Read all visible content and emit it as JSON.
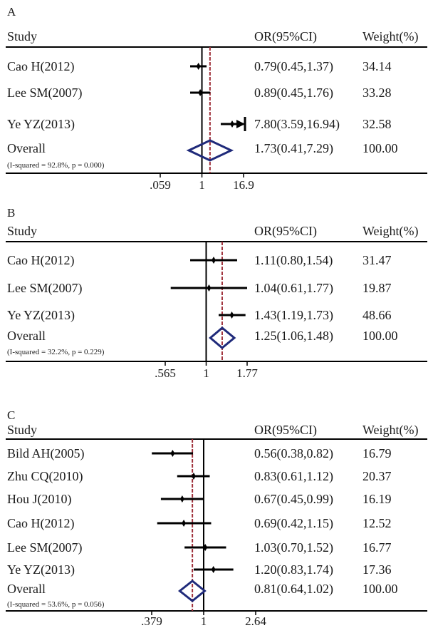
{
  "colors": {
    "text": "#1a1a1a",
    "study_line": "#000000",
    "diamond": "#1f2a7a",
    "overall_line": "#a0303a"
  },
  "chart_data": [
    {
      "type": "forest",
      "panel_label": "A",
      "header": {
        "study": "Study",
        "or": "OR(95%CI)",
        "weight": "Weight(%)"
      },
      "scale": "log",
      "xlim": [
        0.059,
        16.9
      ],
      "ticks": [
        {
          "value": 0.059,
          "label": ".059"
        },
        {
          "value": 1,
          "label": "1"
        },
        {
          "value": 16.9,
          "label": "16.9"
        }
      ],
      "studies": [
        {
          "name": "Cao H(2012)",
          "or": 0.79,
          "lo": 0.45,
          "hi": 1.37,
          "or_text": "0.79(0.45,1.37)",
          "weight": "34.14"
        },
        {
          "name": "Lee SM(2007)",
          "or": 0.89,
          "lo": 0.45,
          "hi": 1.76,
          "or_text": "0.89(0.45,1.76)",
          "weight": "33.28"
        },
        {
          "name": "Ye YZ(2013)",
          "or": 7.8,
          "lo": 3.59,
          "hi": 16.94,
          "or_text": "7.80(3.59,16.94)",
          "weight": "32.58",
          "arrow_right": true
        }
      ],
      "overall": {
        "name": "Overall",
        "heterogeneity": "(I-squared = 92.8%, p = 0.000)",
        "or": 1.73,
        "lo": 0.41,
        "hi": 7.29,
        "or_text": "1.73(0.41,7.29)",
        "weight": "100.00"
      }
    },
    {
      "type": "forest",
      "panel_label": "B",
      "header": {
        "study": "Study",
        "or": "OR(95%CI)",
        "weight": "Weight(%)"
      },
      "scale": "log",
      "xlim": [
        0.565,
        1.77
      ],
      "ticks": [
        {
          "value": 0.565,
          "label": ".565"
        },
        {
          "value": 1,
          "label": "1"
        },
        {
          "value": 1.77,
          "label": "1.77"
        }
      ],
      "studies": [
        {
          "name": "Cao H(2012)",
          "or": 1.11,
          "lo": 0.8,
          "hi": 1.54,
          "or_text": "1.11(0.80,1.54)",
          "weight": "31.47"
        },
        {
          "name": "Lee SM(2007)",
          "or": 1.04,
          "lo": 0.61,
          "hi": 1.77,
          "or_text": "1.04(0.61,1.77)",
          "weight": "19.87"
        },
        {
          "name": "Ye YZ(2013)",
          "or": 1.43,
          "lo": 1.19,
          "hi": 1.73,
          "or_text": "1.43(1.19,1.73)",
          "weight": "48.66"
        }
      ],
      "overall": {
        "name": "Overall",
        "heterogeneity": "(I-squared = 32.2%, p = 0.229)",
        "or": 1.25,
        "lo": 1.06,
        "hi": 1.48,
        "or_text": "1.25(1.06,1.48)",
        "weight": "100.00"
      }
    },
    {
      "type": "forest",
      "panel_label": "C",
      "header": {
        "study": "Study",
        "or": "OR(95%CI)",
        "weight": "Weight(%)"
      },
      "scale": "log",
      "xlim": [
        0.379,
        2.64
      ],
      "ticks": [
        {
          "value": 0.379,
          "label": ".379"
        },
        {
          "value": 1,
          "label": "1"
        },
        {
          "value": 2.64,
          "label": "2.64"
        }
      ],
      "studies": [
        {
          "name": "Bild AH(2005)",
          "or": 0.56,
          "lo": 0.38,
          "hi": 0.82,
          "or_text": "0.56(0.38,0.82)",
          "weight": "16.79"
        },
        {
          "name": "Zhu CQ(2010)",
          "or": 0.83,
          "lo": 0.61,
          "hi": 1.12,
          "or_text": "0.83(0.61,1.12)",
          "weight": "20.37"
        },
        {
          "name": "Hou J(2010)",
          "or": 0.67,
          "lo": 0.45,
          "hi": 0.99,
          "or_text": "0.67(0.45,0.99)",
          "weight": "16.19"
        },
        {
          "name": "Cao H(2012)",
          "or": 0.69,
          "lo": 0.42,
          "hi": 1.15,
          "or_text": "0.69(0.42,1.15)",
          "weight": "12.52"
        },
        {
          "name": "Lee SM(2007)",
          "or": 1.03,
          "lo": 0.7,
          "hi": 1.52,
          "or_text": "1.03(0.70,1.52)",
          "weight": "16.77"
        },
        {
          "name": "Ye YZ(2013)",
          "or": 1.2,
          "lo": 0.83,
          "hi": 1.74,
          "or_text": "1.20(0.83,1.74)",
          "weight": "17.36"
        }
      ],
      "overall": {
        "name": "Overall",
        "heterogeneity": "(I-squared = 53.6%, p = 0.056)",
        "or": 0.81,
        "lo": 0.64,
        "hi": 1.02,
        "or_text": "0.81(0.64,1.02)",
        "weight": "100.00"
      }
    }
  ]
}
